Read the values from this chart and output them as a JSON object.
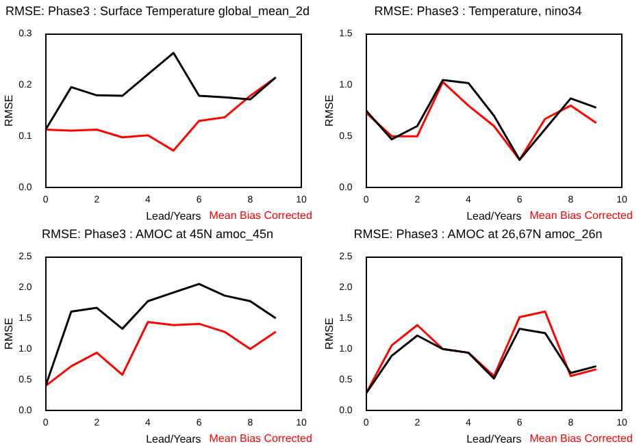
{
  "chart_data": [
    {
      "type": "line",
      "title": "RMSE: Phase3 : Surface Temperature global_mean_2d",
      "xlabel": "Lead/Years",
      "ylabel": "RMSE",
      "legend": "bottom",
      "x": [
        0,
        1,
        2,
        3,
        4,
        5,
        6,
        7,
        8,
        9
      ],
      "xlim": [
        0,
        10
      ],
      "xticks": [
        0,
        2,
        4,
        6,
        8,
        10
      ],
      "ylim": [
        0,
        0.3
      ],
      "yticks": [
        {
          "value": 0,
          "label": "0.0"
        },
        0.1,
        0.2,
        0.3
      ],
      "series": [
        {
          "color": "#000000",
          "values": [
            0.113,
            0.196,
            0.18,
            0.179,
            0.221,
            0.263,
            0.179,
            0.176,
            0.172,
            0.215
          ]
        },
        {
          "name": "Mean Bias Corrected",
          "color": "#ff0000",
          "values": [
            0.113,
            0.111,
            0.113,
            0.098,
            0.102,
            0.072,
            0.13,
            0.137,
            0.179,
            0.215
          ]
        }
      ]
    },
    {
      "type": "line",
      "title": "RMSE: Phase3 : Temperature, nino34",
      "xlabel": "Lead/Years",
      "ylabel": "RMSE",
      "legend": "bottom",
      "x": [
        0,
        1,
        2,
        3,
        4,
        5,
        6,
        7,
        8,
        9
      ],
      "xlim": [
        0,
        10
      ],
      "xticks": [
        0,
        2,
        4,
        6,
        8,
        10
      ],
      "ylim": [
        0,
        1.5
      ],
      "yticks": [
        {
          "value": 0,
          "label": "0.0"
        },
        0.5,
        {
          "value": 1,
          "label": "1.0"
        },
        1.5
      ],
      "series": [
        {
          "color": "#000000",
          "values": [
            0.75,
            0.47,
            0.6,
            1.05,
            1.02,
            0.7,
            0.27,
            0.57,
            0.87,
            0.78
          ]
        },
        {
          "name": "Mean Bias Corrected",
          "color": "#ff0000",
          "values": [
            0.73,
            0.5,
            0.5,
            1.03,
            0.8,
            0.6,
            0.27,
            0.67,
            0.8,
            0.63
          ]
        }
      ]
    },
    {
      "type": "line",
      "title": "RMSE: Phase3 : AMOC at 45N amoc_45n",
      "xlabel": "Lead/Years",
      "ylabel": "RMSE",
      "legend": "bottom",
      "x": [
        0,
        1,
        2,
        3,
        4,
        5,
        6,
        7,
        8,
        9
      ],
      "xlim": [
        0,
        10
      ],
      "xticks": [
        0,
        2,
        4,
        6,
        8,
        10
      ],
      "ylim": [
        0,
        2.5
      ],
      "yticks": [
        {
          "value": 0,
          "label": "0.0"
        },
        0.5,
        {
          "value": 1,
          "label": "1.0"
        },
        1.5,
        {
          "value": 2,
          "label": "2.0"
        },
        2.5
      ],
      "series": [
        {
          "color": "#000000",
          "values": [
            0.4,
            1.61,
            1.67,
            1.33,
            1.78,
            1.92,
            2.06,
            1.87,
            1.78,
            1.5
          ]
        },
        {
          "name": "Mean Bias Corrected",
          "color": "#ff0000",
          "values": [
            0.4,
            0.72,
            0.94,
            0.58,
            1.44,
            1.39,
            1.41,
            1.28,
            1.0,
            1.28
          ]
        }
      ]
    },
    {
      "type": "line",
      "title": "RMSE: Phase3 : AMOC at 26,67N amoc_26n",
      "xlabel": "Lead/Years",
      "ylabel": "RMSE",
      "legend": "bottom",
      "x": [
        0,
        1,
        2,
        3,
        4,
        5,
        6,
        7,
        8,
        9
      ],
      "xlim": [
        0,
        10
      ],
      "xticks": [
        0,
        2,
        4,
        6,
        8,
        10
      ],
      "ylim": [
        0,
        2.5
      ],
      "yticks": [
        {
          "value": 0,
          "label": "0.0"
        },
        0.5,
        {
          "value": 1,
          "label": "1.0"
        },
        1.5,
        {
          "value": 2,
          "label": "2.0"
        },
        2.5
      ],
      "series": [
        {
          "color": "#000000",
          "values": [
            0.28,
            0.89,
            1.22,
            1.0,
            0.94,
            0.52,
            1.33,
            1.26,
            0.61,
            0.72
          ]
        },
        {
          "name": "Mean Bias Corrected",
          "color": "#ff0000",
          "values": [
            0.28,
            1.06,
            1.39,
            1.0,
            0.94,
            0.56,
            1.52,
            1.61,
            0.56,
            0.67
          ]
        }
      ]
    }
  ]
}
